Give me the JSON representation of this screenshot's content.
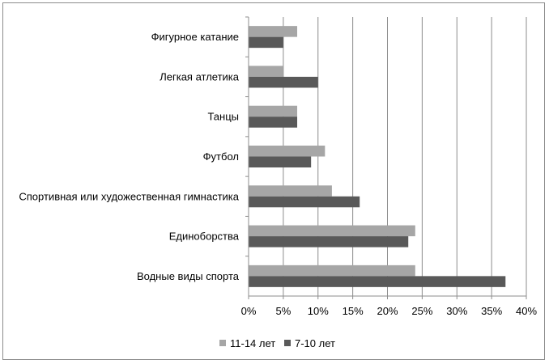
{
  "chart_data": {
    "type": "bar",
    "orientation": "horizontal",
    "categories": [
      "Фигурное катание",
      "Легкая атлетика",
      "Танцы",
      "Футбол",
      "Спортивная или художественная гимнастика",
      "Единоборства",
      "Водные виды спорта"
    ],
    "series": [
      {
        "name": "11-14 лет",
        "color": "#a6a6a6",
        "values": [
          7,
          5,
          7,
          11,
          12,
          24,
          24
        ]
      },
      {
        "name": "7-10 лет",
        "color": "#595959",
        "values": [
          5,
          10,
          7,
          9,
          16,
          23,
          37
        ]
      }
    ],
    "xlim": [
      0,
      40
    ],
    "xticks": [
      "0%",
      "5%",
      "10%",
      "15%",
      "20%",
      "25%",
      "30%",
      "35%",
      "40%"
    ],
    "grid": true,
    "legend_position": "bottom"
  }
}
